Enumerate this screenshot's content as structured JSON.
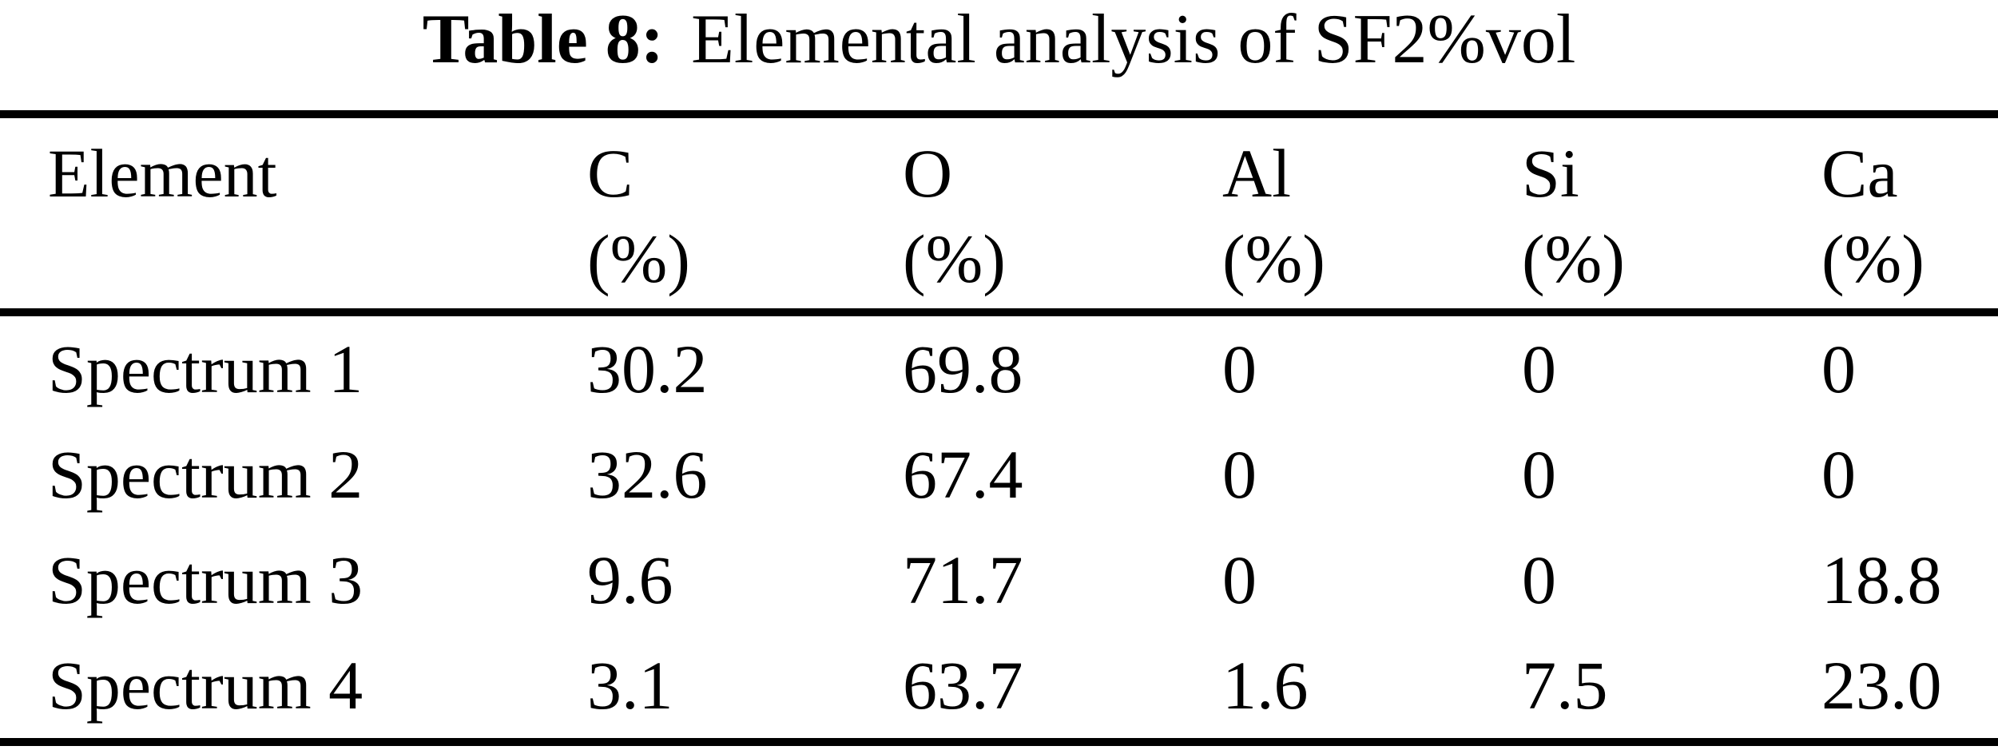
{
  "caption": {
    "label": "Table 8:",
    "text": "Elemental analysis of SF2%vol"
  },
  "table": {
    "columns": [
      {
        "name": "Element",
        "unit": ""
      },
      {
        "name": "C",
        "unit": "(%)"
      },
      {
        "name": "O",
        "unit": "(%)"
      },
      {
        "name": "Al",
        "unit": "(%)"
      },
      {
        "name": "Si",
        "unit": "(%)"
      },
      {
        "name": "Ca",
        "unit": "(%)"
      }
    ],
    "rows": [
      {
        "label": "Spectrum 1",
        "values": [
          "30.2",
          "69.8",
          "0",
          "0",
          "0"
        ]
      },
      {
        "label": "Spectrum 2",
        "values": [
          "32.6",
          "67.4",
          "0",
          "0",
          "0"
        ]
      },
      {
        "label": "Spectrum 3",
        "values": [
          "9.6",
          "71.7",
          "0",
          "0",
          "18.8"
        ]
      },
      {
        "label": "Spectrum 4",
        "values": [
          "3.1",
          "63.7",
          "1.6",
          "7.5",
          "23.0"
        ]
      }
    ]
  },
  "chart_data": {
    "type": "table",
    "title": "Table 8: Elemental analysis of SF2%vol",
    "columns": [
      "Element",
      "C (%)",
      "O (%)",
      "Al (%)",
      "Si (%)",
      "Ca (%)"
    ],
    "rows": [
      [
        "Spectrum 1",
        30.2,
        69.8,
        0,
        0,
        0
      ],
      [
        "Spectrum 2",
        32.6,
        67.4,
        0,
        0,
        0
      ],
      [
        "Spectrum 3",
        9.6,
        71.7,
        0,
        0,
        18.8
      ],
      [
        "Spectrum 4",
        3.1,
        63.7,
        1.6,
        7.5,
        23.0
      ]
    ]
  },
  "colors": {
    "text": "#000000",
    "background": "#ffffff",
    "rule": "#000000"
  }
}
